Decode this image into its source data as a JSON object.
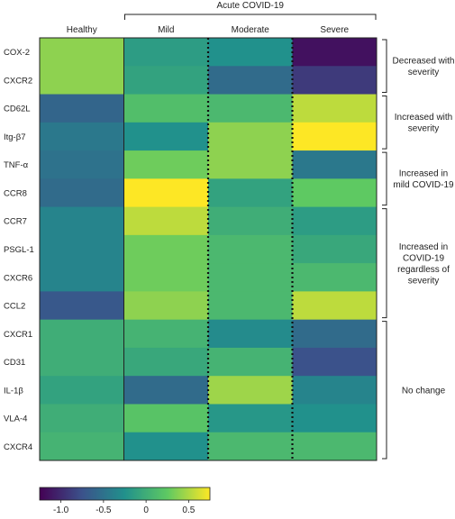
{
  "chart_data": {
    "type": "heatmap",
    "group_label": "Acute COVID-19",
    "columns": [
      "Healthy",
      "Mild",
      "Moderate",
      "Severe"
    ],
    "rows": [
      "COX-2",
      "CXCR2",
      "CD62L",
      "Itg-β7",
      "TNF-α",
      "CCR8",
      "CCR7",
      "PSGL-1",
      "CXCR6",
      "CCL2",
      "CXCR1",
      "CD31",
      "IL-1β",
      "VLA-4",
      "CXCR4"
    ],
    "values": [
      [
        0.4,
        -0.15,
        -0.25,
        -1.15
      ],
      [
        0.4,
        -0.1,
        -0.55,
        -0.9
      ],
      [
        -0.6,
        0.15,
        0.1,
        0.55
      ],
      [
        -0.45,
        -0.25,
        0.4,
        0.75
      ],
      [
        -0.5,
        0.3,
        0.4,
        -0.45
      ],
      [
        -0.55,
        0.75,
        -0.1,
        0.25
      ],
      [
        -0.35,
        0.55,
        0.0,
        -0.15
      ],
      [
        -0.35,
        0.3,
        0.1,
        -0.05
      ],
      [
        -0.35,
        0.3,
        0.1,
        0.1
      ],
      [
        -0.7,
        0.4,
        0.1,
        0.55
      ],
      [
        0.0,
        0.05,
        -0.3,
        -0.55
      ],
      [
        0.0,
        -0.05,
        0.05,
        -0.75
      ],
      [
        -0.1,
        -0.55,
        0.45,
        -0.35
      ],
      [
        0.0,
        0.2,
        -0.2,
        -0.25
      ],
      [
        0.05,
        -0.25,
        0.1,
        0.1
      ]
    ],
    "groups": [
      {
        "label": "Decreased with\nseverity",
        "start": 0,
        "end": 1
      },
      {
        "label": "Increased with\nseverity",
        "start": 2,
        "end": 3
      },
      {
        "label": "Increased in\nmild COVID-19",
        "start": 4,
        "end": 5
      },
      {
        "label": "Increased in\nCOVID-19\nregardless of\nseverity",
        "start": 6,
        "end": 9
      },
      {
        "label": "No change",
        "start": 10,
        "end": 14
      }
    ],
    "colorbar": {
      "min": -1.25,
      "max": 0.75,
      "ticks": [
        -1.0,
        -0.5,
        0,
        0.5
      ],
      "tick_labels": [
        "-1.0",
        "-0.5",
        "0",
        "0.5"
      ]
    },
    "colormap": [
      "#440154",
      "#3b528b",
      "#21918c",
      "#5ec962",
      "#fde725"
    ]
  }
}
